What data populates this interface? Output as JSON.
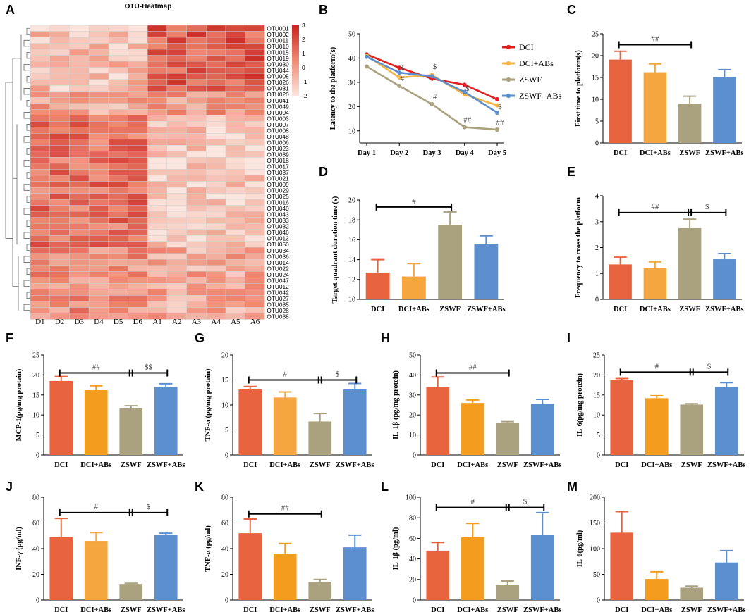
{
  "colors": {
    "DCI": "#e8643f",
    "DCI+ABs": "#f5a63e",
    "DCI+ABs_dark": "#f39c1e",
    "ZSWF": "#aaa27f",
    "ZSWF+ABs": "#5b8fce",
    "line_DCI": "#e02020",
    "line_DCI+ABs": "#f5b443",
    "line_ZSWF": "#aaa27f",
    "line_ZSWF+ABs": "#5b8fce",
    "heat_low": "#fbe6df",
    "heat_high": "#c9241f"
  },
  "chart_data": [
    {
      "panel": "A",
      "type": "heatmap",
      "title": "OTU-Heatmap",
      "samples": [
        "D1",
        "D2",
        "D3",
        "D4",
        "D5",
        "D6",
        "A1",
        "A2",
        "A3",
        "A4",
        "A5",
        "A6"
      ],
      "otus": [
        "OTU001",
        "OTU002",
        "OTU011",
        "OTU010",
        "OTU015",
        "OTU019",
        "OTU030",
        "OTU044",
        "OTU005",
        "OTU026",
        "OTU031",
        "OTU020",
        "OTU041",
        "OTU049",
        "OTU004",
        "OTU003",
        "OTU007",
        "OTU008",
        "OTU048",
        "OTU006",
        "OTU023",
        "OTU039",
        "OTU018",
        "OTU017",
        "OTU037",
        "OTU021",
        "OTU009",
        "OTU029",
        "OTU025",
        "OTU016",
        "OTU040",
        "OTU043",
        "OTU033",
        "OTU032",
        "OTU046",
        "OTU013",
        "OTU050",
        "OTU034",
        "OTU036",
        "OTU014",
        "OTU022",
        "OTU024",
        "OTU047",
        "OTU012",
        "OTU042",
        "OTU027",
        "OTU035",
        "OTU028",
        "OTU038"
      ],
      "colorbar": {
        "min": -2,
        "max": 3,
        "ticks": [
          "3",
          "2",
          "1",
          "0",
          "-1",
          "-2"
        ]
      }
    },
    {
      "panel": "B",
      "type": "line",
      "ylabel": "Latency to the  platform(s)",
      "categories": [
        "Day 1",
        "Day 2",
        "Day 3",
        "Day 4",
        "Day 5"
      ],
      "ylim": [
        5,
        50
      ],
      "yticks": [
        "10",
        "20",
        "30",
        "40",
        "50"
      ],
      "series": [
        {
          "name": "DCI",
          "values": [
            41.5,
            36,
            31.5,
            29,
            23
          ]
        },
        {
          "name": "DCI+ABs",
          "values": [
            41,
            32,
            33,
            25,
            20.5
          ]
        },
        {
          "name": "ZSWF",
          "values": [
            36.5,
            28.5,
            21,
            11.5,
            10.5
          ]
        },
        {
          "name": "ZSWF+ABs",
          "values": [
            40.5,
            34,
            32.5,
            26,
            17.5
          ]
        }
      ],
      "annotations": [
        {
          "text": "$",
          "x": "Day 2",
          "y": 35
        },
        {
          "text": "$",
          "x": "Day 3",
          "y": 35.5
        },
        {
          "text": "#",
          "x": "Day 2",
          "y": 30.5
        },
        {
          "text": "#",
          "x": "Day 3",
          "y": 23
        },
        {
          "text": "$",
          "x": "Day 4",
          "y": 26.5
        },
        {
          "text": "##",
          "x": "Day 4",
          "y": 13.5
        },
        {
          "text": "$",
          "x": "Day 5",
          "y": 19
        },
        {
          "text": "##",
          "x": "Day 5",
          "y": 12.5
        }
      ]
    },
    {
      "panel": "C",
      "type": "bar",
      "ylabel": "First time to platform(s)",
      "categories": [
        "DCI",
        "DCI+ABs",
        "ZSWF",
        "ZSWF+ABs"
      ],
      "values": [
        19.1,
        16.2,
        9,
        15.1
      ],
      "errors": [
        1.9,
        1.9,
        1.7,
        1.7
      ],
      "ylim": [
        0,
        25
      ],
      "yticks": [
        "0",
        "5",
        "10",
        "15",
        "20",
        "25"
      ],
      "sig": [
        {
          "text": "##",
          "from": 0,
          "to": 2,
          "y": 22.5
        }
      ]
    },
    {
      "panel": "D",
      "type": "bar",
      "ylabel": "Target quadrant duration time (s)",
      "categories": [
        "DCI",
        "DCI+ABs",
        "ZSWF",
        "ZSWF+ABs"
      ],
      "values": [
        12.7,
        12.3,
        17.5,
        15.6
      ],
      "errors": [
        1.3,
        1.3,
        1.3,
        0.8
      ],
      "ylim": [
        10,
        20
      ],
      "yticks": [
        "10",
        "12",
        "14",
        "16",
        "18",
        "20"
      ],
      "sig": [
        {
          "text": "#",
          "from": 0,
          "to": 2,
          "y": 19.3
        }
      ]
    },
    {
      "panel": "E",
      "type": "bar",
      "ylabel": "Frequency to cross the platform",
      "categories": [
        "DCI",
        "DCI+ABs",
        "ZSWF",
        "ZSWF+ABs"
      ],
      "values": [
        1.35,
        1.2,
        2.75,
        1.55
      ],
      "errors": [
        0.28,
        0.25,
        0.35,
        0.22
      ],
      "ylim": [
        0,
        4
      ],
      "yticks": [
        "0",
        "1",
        "2",
        "3",
        "4"
      ],
      "sig": [
        {
          "text": "##",
          "from": 0,
          "to": 2,
          "y": 3.35
        },
        {
          "text": "$",
          "from": 2,
          "to": 3,
          "y": 3.35
        }
      ]
    },
    {
      "panel": "F",
      "type": "bar",
      "ylabel": "MCP-1(pg/mg protein)",
      "categories": [
        "DCI",
        "DCI+ABs",
        "ZSWF",
        "ZSWF+ABs"
      ],
      "values": [
        18.5,
        16.2,
        11.7,
        17
      ],
      "errors": [
        1.1,
        1.1,
        0.6,
        0.8
      ],
      "ylim": [
        0,
        25
      ],
      "yticks": [
        "0",
        "5",
        "10",
        "15",
        "20",
        "25"
      ],
      "sig": [
        {
          "text": "##",
          "from": 0,
          "to": 2,
          "y": 20.5
        },
        {
          "text": "$$",
          "from": 2,
          "to": 3,
          "y": 20.5
        }
      ]
    },
    {
      "panel": "G",
      "type": "bar",
      "ylabel": "TNF-α (pg/mg protein)",
      "categories": [
        "DCI",
        "DCI+ABs",
        "ZSWF",
        "ZSWF+ABs"
      ],
      "values": [
        13.1,
        11.5,
        6.7,
        13.1
      ],
      "errors": [
        0.6,
        1.1,
        1.6,
        1.2
      ],
      "ylim": [
        0,
        20
      ],
      "yticks": [
        "0",
        "5",
        "10",
        "15",
        "20"
      ],
      "sig": [
        {
          "text": "#",
          "from": 0,
          "to": 2,
          "y": 15
        },
        {
          "text": "$",
          "from": 2,
          "to": 3,
          "y": 15
        }
      ]
    },
    {
      "panel": "H",
      "type": "bar",
      "ylabel": "IL-1β  (pg/mg protein)",
      "categories": [
        "DCI",
        "DCI+ABs",
        "ZSWF",
        "ZSWF+ABs"
      ],
      "values": [
        34,
        26,
        16.2,
        25.6
      ],
      "errors": [
        5,
        1.5,
        0.5,
        2.2
      ],
      "ylim": [
        0,
        50
      ],
      "yticks": [
        "0",
        "10",
        "20",
        "30",
        "40",
        "50"
      ],
      "sig": [
        {
          "text": "##",
          "from": 0,
          "to": 2,
          "y": 41
        }
      ]
    },
    {
      "panel": "I",
      "type": "bar",
      "ylabel": "IL-6(pg/mg protein)",
      "categories": [
        "DCI",
        "DCI+ABs",
        "ZSWF",
        "ZSWF+ABs"
      ],
      "values": [
        18.7,
        14.2,
        12.6,
        17
      ],
      "errors": [
        0.4,
        0.6,
        0.2,
        1.1
      ],
      "ylim": [
        0,
        25
      ],
      "yticks": [
        "0",
        "5",
        "10",
        "15",
        "20",
        "25"
      ],
      "sig": [
        {
          "text": "#",
          "from": 0,
          "to": 2,
          "y": 20.7
        },
        {
          "text": "$",
          "from": 2,
          "to": 3,
          "y": 20.7
        }
      ]
    },
    {
      "panel": "J",
      "type": "bar",
      "ylabel": "INF-γ (pg/ml)",
      "categories": [
        "DCI",
        "DCI+ABs",
        "ZSWF",
        "ZSWF+ABs"
      ],
      "values": [
        49,
        46,
        12.5,
        50.5
      ],
      "errors": [
        14.5,
        6.5,
        0.5,
        1.5
      ],
      "ylim": [
        0,
        80
      ],
      "yticks": [
        "0",
        "20",
        "40",
        "60",
        "80"
      ],
      "sig": [
        {
          "text": "#",
          "from": 0,
          "to": 2,
          "y": 68
        },
        {
          "text": "$",
          "from": 2,
          "to": 3,
          "y": 68
        }
      ]
    },
    {
      "panel": "K",
      "type": "bar",
      "ylabel": "TNF-α (pg/ml)",
      "categories": [
        "DCI",
        "DCI+ABs",
        "ZSWF",
        "ZSWF+ABs"
      ],
      "values": [
        52,
        36,
        14,
        41
      ],
      "errors": [
        11,
        8,
        2,
        9.5
      ],
      "ylim": [
        0,
        80
      ],
      "yticks": [
        "0",
        "20",
        "40",
        "60",
        "80"
      ],
      "sig": [
        {
          "text": "##",
          "from": 0,
          "to": 2,
          "y": 67
        }
      ]
    },
    {
      "panel": "L",
      "type": "bar",
      "ylabel": "IL-1β (pg/ml)",
      "categories": [
        "DCI",
        "DCI+ABs",
        "ZSWF",
        "ZSWF+ABs"
      ],
      "values": [
        48,
        61,
        14.5,
        63
      ],
      "errors": [
        8,
        13.5,
        4,
        22
      ],
      "ylim": [
        0,
        100
      ],
      "yticks": [
        "0",
        "20",
        "40",
        "60",
        "80",
        "100"
      ],
      "sig": [
        {
          "text": "#",
          "from": 0,
          "to": 2,
          "y": 90
        },
        {
          "text": "$",
          "from": 2,
          "to": 3,
          "y": 90
        }
      ]
    },
    {
      "panel": "M",
      "type": "bar",
      "ylabel": "IL-6(pg/ml)",
      "categories": [
        "DCI",
        "DCI+ABs",
        "ZSWF",
        "ZSWF+ABs"
      ],
      "values": [
        131,
        41,
        24,
        73
      ],
      "errors": [
        41,
        14,
        3,
        23
      ],
      "ylim": [
        0,
        200
      ],
      "yticks": [
        "0",
        "50",
        "100",
        "150",
        "200"
      ],
      "sig": []
    }
  ]
}
